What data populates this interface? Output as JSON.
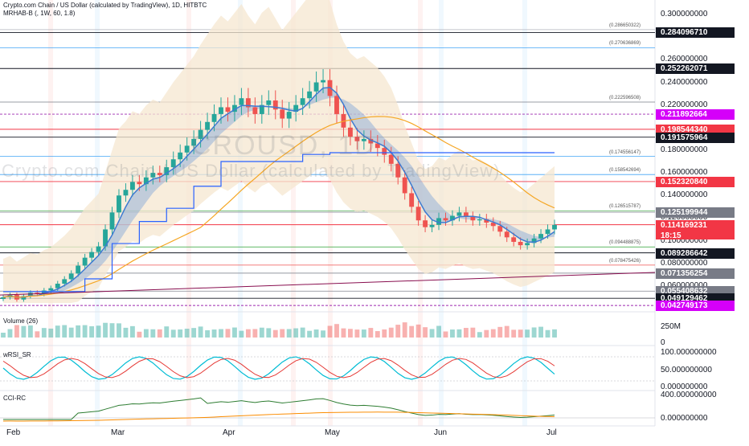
{
  "header": {
    "title": "Crypto.com Chain / US Dollar (calculated by TradingView), 1D, HITBTC",
    "indicator": "MRHAB-B (, 1W, 60, 1.8)"
  },
  "watermark": {
    "symbol": "CROUSD, 1D",
    "name": "Crypto.com Chain / US Dollar (calculated by TradingView)"
  },
  "panes": {
    "volume_label": "Volume (26)",
    "wrsi_label": "wRSI_SR",
    "cci_label": "CCI-RC"
  },
  "colors": {
    "up": "#26a69a",
    "down": "#ef5350",
    "accent_red": "#f23645",
    "accent_purple": "#9c27b0",
    "accent_black": "#131722",
    "band_fill": "#f6e7d0",
    "blue_band": "#5b8fd6",
    "orange_ma": "#f5a623"
  },
  "chart_data": {
    "type": "candlestick",
    "x_axis": {
      "labels": [
        "Feb",
        "Mar",
        "Apr",
        "May",
        "Jun",
        "Jul"
      ]
    },
    "y_axis": {
      "ticks": [
        "0.300000000",
        "0.260000000",
        "0.240000000",
        "0.220000000",
        "0.180000000",
        "0.160000000",
        "0.140000000",
        "0.120000000",
        "0.100000000",
        "0.080000000",
        "0.060000000"
      ],
      "range": [
        0.04,
        0.31
      ]
    },
    "price_tags": [
      {
        "value": "0.284096710",
        "kind": "black"
      },
      {
        "value": "0.252262071",
        "kind": "black"
      },
      {
        "value": "0.211892664",
        "kind": "purple"
      },
      {
        "value": "0.198544340",
        "kind": "red"
      },
      {
        "value": "0.191575964",
        "kind": "black"
      },
      {
        "value": "0.152320840",
        "kind": "red"
      },
      {
        "value": "0.125199944",
        "kind": "gray"
      },
      {
        "value": "0.114169231",
        "kind": "red",
        "sub": "18:15"
      },
      {
        "value": "0.089286642",
        "kind": "black"
      },
      {
        "value": "0.071356254",
        "kind": "gray"
      },
      {
        "value": "0.055408632",
        "kind": "gray"
      },
      {
        "value": "0.049129462",
        "kind": "black"
      },
      {
        "value": "0.042749173",
        "kind": "purple"
      }
    ],
    "level_labels": [
      {
        "label": "(0.286650322)",
        "value": 0.28665
      },
      {
        "label": "(0.270636869)",
        "value": 0.27064
      },
      {
        "label": "(0.222596508)",
        "value": 0.2226
      },
      {
        "label": "(0.174556147)",
        "value": 0.17456
      },
      {
        "label": "(0.158542694)",
        "value": 0.15854
      },
      {
        "label": "(0.126515787)",
        "value": 0.12652
      },
      {
        "label": "(0.094488875)",
        "value": 0.09449
      },
      {
        "label": "(0.078475426)",
        "value": 0.07848
      }
    ],
    "close_series": [
      0.05,
      0.052,
      0.048,
      0.051,
      0.054,
      0.053,
      0.056,
      0.058,
      0.062,
      0.066,
      0.071,
      0.078,
      0.085,
      0.09,
      0.095,
      0.11,
      0.125,
      0.14,
      0.145,
      0.152,
      0.15,
      0.156,
      0.16,
      0.158,
      0.165,
      0.172,
      0.178,
      0.184,
      0.19,
      0.198,
      0.205,
      0.212,
      0.218,
      0.214,
      0.22,
      0.226,
      0.218,
      0.212,
      0.22,
      0.224,
      0.216,
      0.208,
      0.214,
      0.22,
      0.226,
      0.232,
      0.24,
      0.242,
      0.228,
      0.212,
      0.2,
      0.192,
      0.188,
      0.19,
      0.186,
      0.182,
      0.176,
      0.168,
      0.156,
      0.142,
      0.13,
      0.118,
      0.112,
      0.114,
      0.12,
      0.118,
      0.122,
      0.125,
      0.121,
      0.118,
      0.119,
      0.116,
      0.113,
      0.108,
      0.103,
      0.099,
      0.096,
      0.098,
      0.102,
      0.106,
      0.11,
      0.114
    ],
    "volume_pane": {
      "axis_ticks": [
        "250M",
        "0"
      ]
    },
    "wrsi_pane": {
      "axis_ticks": [
        "100.000000000",
        "50.000000000",
        "0.000000000"
      ]
    },
    "cci_pane": {
      "axis_ticks": [
        "400.000000000",
        "0.000000000"
      ]
    }
  }
}
